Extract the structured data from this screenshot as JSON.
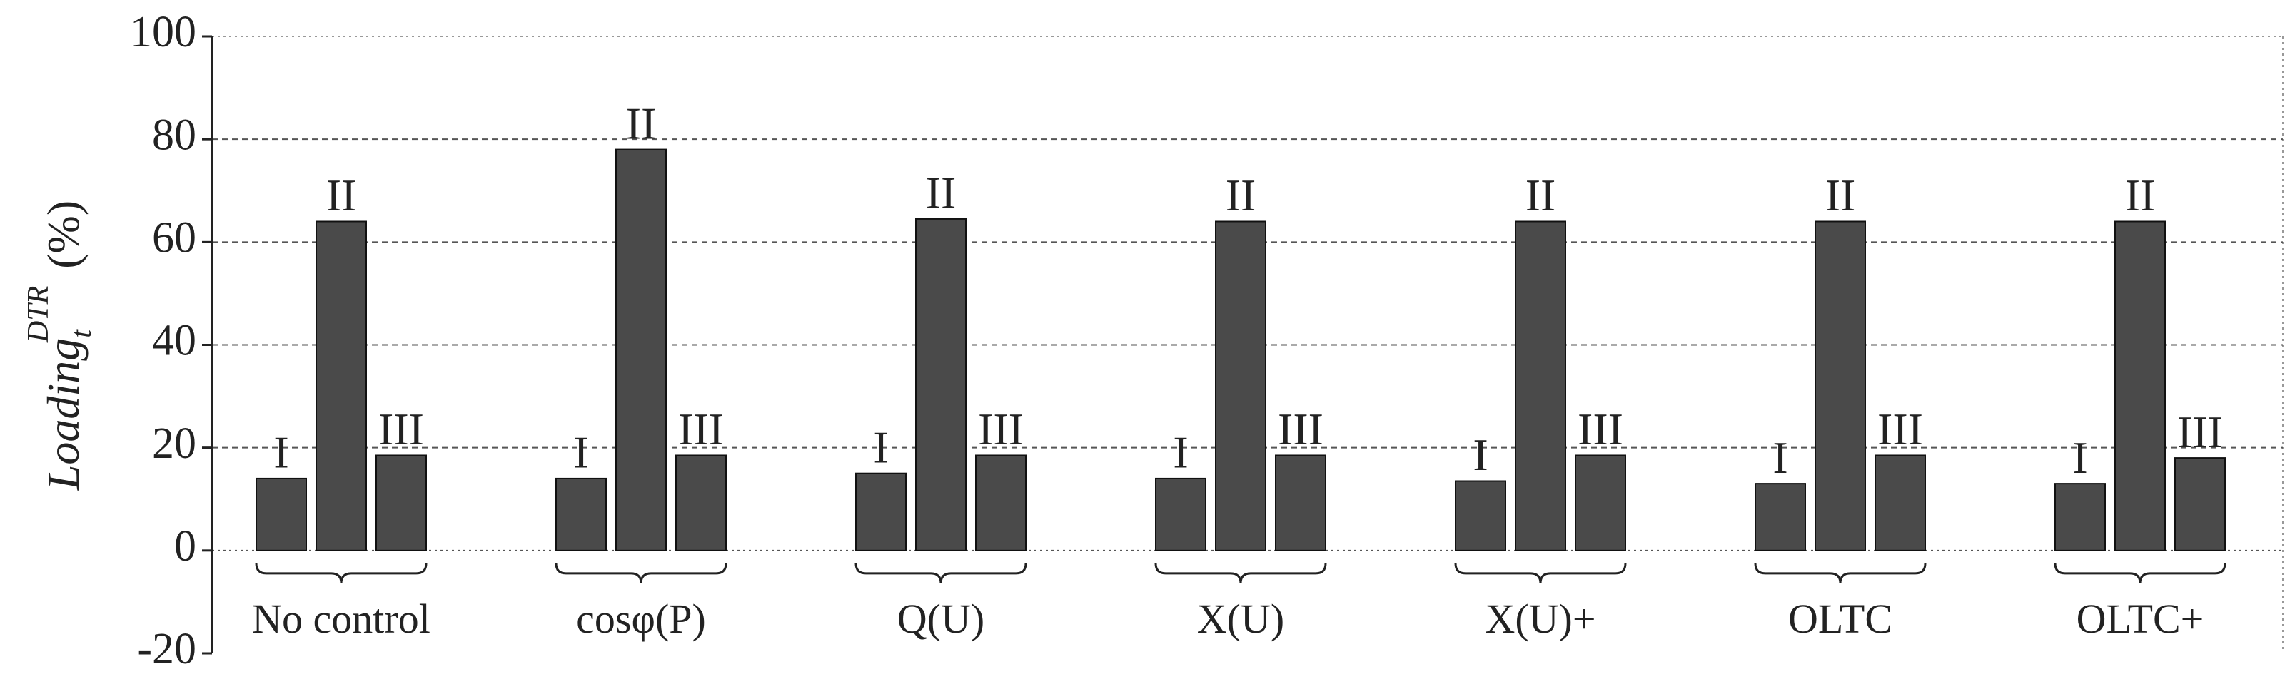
{
  "chart_data": {
    "type": "bar",
    "ylabel": "Loading",
    "ylabel_sub": "t",
    "ylabel_sup": "DTR",
    "ylabel_unit": "(%)",
    "categories": [
      "No control",
      "cosφ(P)",
      "Q(U)",
      "X(U)",
      "X(U)+",
      "OLTC",
      "OLTC+"
    ],
    "series": [
      {
        "name": "I",
        "color": "#4a4a4a",
        "values": [
          14,
          14,
          15,
          14,
          13.5,
          13,
          13
        ]
      },
      {
        "name": "II",
        "color": "#4a4a4a",
        "values": [
          64,
          78,
          64.5,
          64,
          64,
          64,
          64
        ]
      },
      {
        "name": "III",
        "color": "#4a4a4a",
        "values": [
          18.5,
          18.5,
          18.5,
          18.5,
          18.5,
          18.5,
          18
        ]
      }
    ],
    "ylim": [
      -20,
      100
    ],
    "yticks": [
      -20,
      0,
      20,
      40,
      60,
      80,
      100
    ],
    "grid": true
  }
}
